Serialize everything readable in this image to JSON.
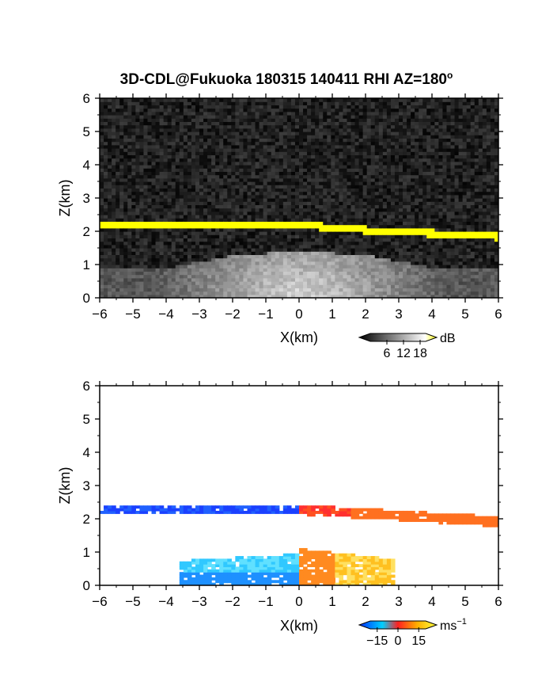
{
  "title_main": "3D-CDL@Fukuoka 180315 140411 RHI AZ=180",
  "title_degree": "o",
  "panels": [
    {
      "chart_data": {
        "type": "heatmap",
        "variable": "backscatter intensity",
        "xlabel": "X(km)",
        "ylabel": "Z(km)",
        "xlim": [
          -6,
          6
        ],
        "ylim": [
          0,
          6
        ],
        "xticks": [
          -6,
          -5,
          -4,
          -3,
          -2,
          -1,
          0,
          1,
          2,
          3,
          4,
          5,
          6
        ],
        "yticks": [
          0,
          1,
          2,
          3,
          4,
          5,
          6
        ],
        "colorbar": {
          "unit": "dB",
          "ticks": [
            "6",
            "12",
            "18"
          ],
          "range": [
            0,
            20
          ],
          "colors": [
            "#000000",
            "#ffffff",
            "#ffff00"
          ]
        },
        "features": {
          "saturated_layer_top_km": [
            [
              -6,
              2.35
            ],
            [
              -2,
              2.32
            ],
            [
              0,
              2.3
            ],
            [
              2,
              2.15
            ],
            [
              4,
              2.05
            ],
            [
              6,
              1.95
            ]
          ],
          "saturated_layer_thickness_km": 0.15,
          "scatter_region_top_km": [
            [
              -4,
              0.9
            ],
            [
              -2,
              1.3
            ],
            [
              0,
              1.4
            ],
            [
              2,
              1.3
            ],
            [
              4,
              0.9
            ]
          ]
        }
      }
    },
    {
      "chart_data": {
        "type": "heatmap",
        "variable": "radial velocity",
        "xlabel": "X(km)",
        "ylabel": "Z(km)",
        "xlim": [
          -6,
          6
        ],
        "ylim": [
          0,
          6
        ],
        "xticks": [
          -6,
          -5,
          -4,
          -3,
          -2,
          -1,
          0,
          1,
          2,
          3,
          4,
          5,
          6
        ],
        "yticks": [
          0,
          1,
          2,
          3,
          4,
          5,
          6
        ],
        "colorbar": {
          "unit": "ms",
          "unit_exp": "−1",
          "ticks": [
            "−15",
            "0",
            "15"
          ],
          "range": [
            -20,
            20
          ],
          "colors": [
            "#0030ff",
            "#00d0ff",
            "#ff2020",
            "#ffb000",
            "#ffff40"
          ]
        },
        "features": {
          "negative_region_x_km": [
            -6,
            0
          ],
          "positive_region_x_km": [
            0,
            6
          ],
          "layer_z_km": [
            1.9,
            2.45
          ]
        }
      }
    }
  ]
}
